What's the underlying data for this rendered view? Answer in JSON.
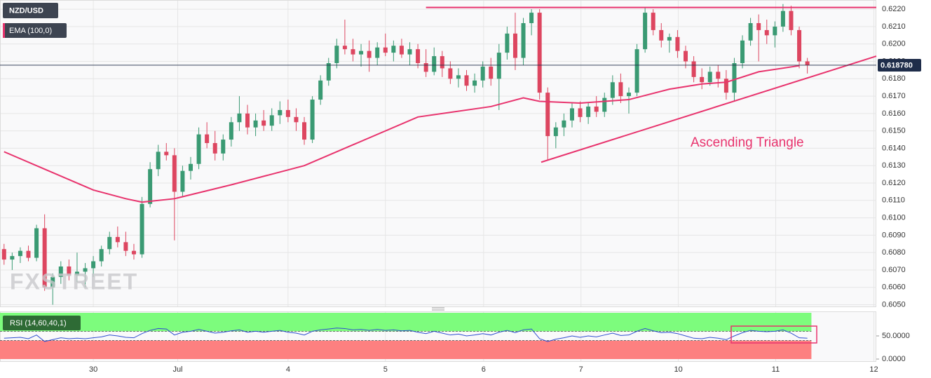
{
  "chart_data": {
    "type": "candlestick",
    "symbol": "NZD/USD",
    "watermark": "FXSTREET",
    "bull_color": "#3a9a73",
    "bear_color": "#dd4660",
    "xlim": [
      -0.5,
      107.5
    ],
    "ylim": [
      0.6049,
      0.62253
    ],
    "xticks": [
      {
        "value": 11,
        "label": "30"
      },
      {
        "value": 21.4,
        "label": "Jul"
      },
      {
        "value": 35,
        "label": "4"
      },
      {
        "value": 47,
        "label": "5"
      },
      {
        "value": 59.1,
        "label": "6"
      },
      {
        "value": 71.1,
        "label": "7"
      },
      {
        "value": 83.1,
        "label": "10"
      },
      {
        "value": 95.1,
        "label": "11"
      },
      {
        "value": 107.2,
        "label": "12"
      }
    ],
    "yticks": [
      {
        "value": 0.605,
        "label": "0.6050"
      },
      {
        "value": 0.606,
        "label": "0.6060"
      },
      {
        "value": 0.607,
        "label": "0.6070"
      },
      {
        "value": 0.608,
        "label": "0.6080"
      },
      {
        "value": 0.609,
        "label": "0.6090"
      },
      {
        "value": 0.61,
        "label": "0.6100"
      },
      {
        "value": 0.611,
        "label": "0.6110"
      },
      {
        "value": 0.612,
        "label": "0.6120"
      },
      {
        "value": 0.613,
        "label": "0.6130"
      },
      {
        "value": 0.614,
        "label": "0.6140"
      },
      {
        "value": 0.615,
        "label": "0.6150"
      },
      {
        "value": 0.616,
        "label": "0.6160"
      },
      {
        "value": 0.617,
        "label": "0.6170"
      },
      {
        "value": 0.618,
        "label": "0.6180"
      },
      {
        "value": 0.619,
        "label": "0.6190"
      },
      {
        "value": 0.62,
        "label": "0.6200"
      },
      {
        "value": 0.621,
        "label": "0.6210"
      },
      {
        "value": 0.622,
        "label": "0.6220"
      }
    ],
    "grid": true,
    "last_price": {
      "value": 0.61878,
      "label": "0.618780"
    },
    "ohlc": [
      [
        0.6082,
        0.6085,
        0.6073,
        0.6076
      ],
      [
        0.6076,
        0.608,
        0.607,
        0.6078
      ],
      [
        0.6078,
        0.6083,
        0.6074,
        0.6081
      ],
      [
        0.6081,
        0.6084,
        0.6075,
        0.6077
      ],
      [
        0.6077,
        0.6096,
        0.6075,
        0.6094
      ],
      [
        0.6094,
        0.6102,
        0.6058,
        0.606
      ],
      [
        0.606,
        0.6068,
        0.605,
        0.6066
      ],
      [
        0.6066,
        0.6075,
        0.6062,
        0.6072
      ],
      [
        0.6072,
        0.6076,
        0.6064,
        0.6067
      ],
      [
        0.6067,
        0.608,
        0.6063,
        0.6069
      ],
      [
        0.6069,
        0.6074,
        0.606,
        0.6071
      ],
      [
        0.6071,
        0.6078,
        0.6066,
        0.6075
      ],
      [
        0.6075,
        0.6084,
        0.6072,
        0.6082
      ],
      [
        0.6082,
        0.6092,
        0.6079,
        0.6089
      ],
      [
        0.6089,
        0.6095,
        0.6083,
        0.6086
      ],
      [
        0.6086,
        0.6092,
        0.6078,
        0.6081
      ],
      [
        0.6081,
        0.6085,
        0.6076,
        0.6079
      ],
      [
        0.6079,
        0.6112,
        0.6077,
        0.6108
      ],
      [
        0.6108,
        0.6132,
        0.6106,
        0.6128
      ],
      [
        0.6128,
        0.6142,
        0.6124,
        0.6138
      ],
      [
        0.6138,
        0.6143,
        0.6133,
        0.6136
      ],
      [
        0.6136,
        0.614,
        0.6087,
        0.6115
      ],
      [
        0.6115,
        0.613,
        0.6112,
        0.6127
      ],
      [
        0.6127,
        0.6135,
        0.6122,
        0.6131
      ],
      [
        0.6131,
        0.6152,
        0.6128,
        0.6148
      ],
      [
        0.6148,
        0.6155,
        0.614,
        0.6143
      ],
      [
        0.6143,
        0.615,
        0.6133,
        0.6137
      ],
      [
        0.6137,
        0.6148,
        0.6133,
        0.6145
      ],
      [
        0.6145,
        0.6158,
        0.6141,
        0.6155
      ],
      [
        0.6155,
        0.617,
        0.615,
        0.616
      ],
      [
        0.616,
        0.6165,
        0.6148,
        0.6152
      ],
      [
        0.6152,
        0.616,
        0.6147,
        0.6156
      ],
      [
        0.6156,
        0.6162,
        0.615,
        0.6153
      ],
      [
        0.6153,
        0.6163,
        0.615,
        0.6159
      ],
      [
        0.6159,
        0.6167,
        0.6154,
        0.6162
      ],
      [
        0.6162,
        0.6168,
        0.6155,
        0.6158
      ],
      [
        0.6158,
        0.6163,
        0.615,
        0.6155
      ],
      [
        0.6155,
        0.6158,
        0.6142,
        0.6145
      ],
      [
        0.6145,
        0.617,
        0.6143,
        0.6168
      ],
      [
        0.6168,
        0.6182,
        0.6165,
        0.6179
      ],
      [
        0.6179,
        0.6192,
        0.6176,
        0.6189
      ],
      [
        0.6189,
        0.6203,
        0.6186,
        0.6199
      ],
      [
        0.6199,
        0.6214,
        0.6194,
        0.6197
      ],
      [
        0.6197,
        0.6203,
        0.619,
        0.6194
      ],
      [
        0.6194,
        0.62,
        0.6187,
        0.6196
      ],
      [
        0.6196,
        0.6202,
        0.6184,
        0.6192
      ],
      [
        0.6192,
        0.6201,
        0.6188,
        0.6198
      ],
      [
        0.6198,
        0.6206,
        0.6193,
        0.6195
      ],
      [
        0.6195,
        0.6202,
        0.619,
        0.6199
      ],
      [
        0.6199,
        0.6203,
        0.6192,
        0.6194
      ],
      [
        0.6194,
        0.6201,
        0.6188,
        0.6197
      ],
      [
        0.6197,
        0.62,
        0.6186,
        0.6189
      ],
      [
        0.6189,
        0.6197,
        0.6181,
        0.6184
      ],
      [
        0.6184,
        0.6198,
        0.6182,
        0.6193
      ],
      [
        0.6193,
        0.6196,
        0.6181,
        0.6186
      ],
      [
        0.6186,
        0.619,
        0.6177,
        0.618
      ],
      [
        0.618,
        0.6186,
        0.6175,
        0.6182
      ],
      [
        0.6182,
        0.6185,
        0.6173,
        0.6176
      ],
      [
        0.6176,
        0.6183,
        0.6172,
        0.6179
      ],
      [
        0.6179,
        0.619,
        0.6175,
        0.6187
      ],
      [
        0.6187,
        0.6192,
        0.6176,
        0.618
      ],
      [
        0.618,
        0.62,
        0.6162,
        0.6195
      ],
      [
        0.6195,
        0.621,
        0.6191,
        0.6206
      ],
      [
        0.6206,
        0.6218,
        0.6185,
        0.6192
      ],
      [
        0.6192,
        0.6215,
        0.6188,
        0.6212
      ],
      [
        0.6212,
        0.622,
        0.6205,
        0.6218
      ],
      [
        0.6218,
        0.622,
        0.6168,
        0.6172
      ],
      [
        0.6172,
        0.6175,
        0.6133,
        0.6147
      ],
      [
        0.6147,
        0.6155,
        0.614,
        0.6152
      ],
      [
        0.6152,
        0.616,
        0.6147,
        0.6156
      ],
      [
        0.6156,
        0.6166,
        0.6152,
        0.6163
      ],
      [
        0.6163,
        0.6167,
        0.6155,
        0.6158
      ],
      [
        0.6158,
        0.6166,
        0.6154,
        0.6164
      ],
      [
        0.6164,
        0.617,
        0.6158,
        0.6161
      ],
      [
        0.6161,
        0.6172,
        0.6158,
        0.6169
      ],
      [
        0.6169,
        0.6182,
        0.6165,
        0.6178
      ],
      [
        0.6178,
        0.6183,
        0.6166,
        0.617
      ],
      [
        0.617,
        0.6175,
        0.616,
        0.6172
      ],
      [
        0.6172,
        0.62,
        0.617,
        0.6197
      ],
      [
        0.6197,
        0.6221,
        0.6195,
        0.6218
      ],
      [
        0.6218,
        0.622,
        0.6205,
        0.6208
      ],
      [
        0.6208,
        0.6212,
        0.6198,
        0.6202
      ],
      [
        0.6202,
        0.6206,
        0.6195,
        0.6204
      ],
      [
        0.6204,
        0.6208,
        0.6192,
        0.6196
      ],
      [
        0.6196,
        0.6199,
        0.6186,
        0.619
      ],
      [
        0.619,
        0.6193,
        0.6178,
        0.6181
      ],
      [
        0.6181,
        0.6186,
        0.6174,
        0.6178
      ],
      [
        0.6178,
        0.6187,
        0.6176,
        0.6184
      ],
      [
        0.6184,
        0.6188,
        0.6175,
        0.618
      ],
      [
        0.618,
        0.6185,
        0.6168,
        0.6172
      ],
      [
        0.6172,
        0.6192,
        0.6167,
        0.6189
      ],
      [
        0.6189,
        0.6205,
        0.6186,
        0.6202
      ],
      [
        0.6202,
        0.6215,
        0.6199,
        0.6212
      ],
      [
        0.6212,
        0.6217,
        0.619,
        0.6208
      ],
      [
        0.6208,
        0.6214,
        0.62,
        0.6205
      ],
      [
        0.6205,
        0.6213,
        0.6198,
        0.621
      ],
      [
        0.621,
        0.6223,
        0.6207,
        0.6219
      ],
      [
        0.6219,
        0.6222,
        0.6205,
        0.6208
      ],
      [
        0.6208,
        0.621,
        0.6186,
        0.619
      ],
      [
        0.619,
        0.6192,
        0.6183,
        0.61878
      ]
    ],
    "series": [
      {
        "name": "EMA (100,0)",
        "color": "#e8336d",
        "x": [
          0,
          5,
          11,
          15,
          17,
          21,
          28,
          37,
          43,
          51,
          60,
          64,
          66,
          71,
          77,
          82,
          86,
          89,
          93,
          98
        ],
        "values": [
          0.6138,
          0.6128,
          0.6116,
          0.6111,
          0.6109,
          0.6111,
          0.6119,
          0.613,
          0.6142,
          0.6158,
          0.6164,
          0.6169,
          0.6167,
          0.6166,
          0.6168,
          0.6174,
          0.6177,
          0.6178,
          0.6184,
          0.61875
        ]
      }
    ],
    "lines": [
      {
        "color": "#e8336d",
        "x": [
          52,
          107.5
        ],
        "y": [
          0.6221,
          0.6221
        ]
      },
      {
        "color": "#e8336d",
        "x": [
          66.2,
          107.5
        ],
        "y": [
          0.6132,
          0.6193
        ]
      }
    ],
    "annotation": "Ascending Triangle",
    "indicator": {
      "name": "RSI (14,60,40,1)",
      "color": "#2f4fd0",
      "ylim": [
        0,
        100
      ],
      "yticks": [
        {
          "value": 50,
          "label": "50.0000"
        },
        {
          "value": 0,
          "label": "0.0000"
        }
      ],
      "levels": [
        60,
        40
      ],
      "level_colors": [
        "#7dfc7d",
        "#fd8080"
      ],
      "values": [
        45,
        46,
        47,
        44,
        52,
        38,
        42,
        46,
        44,
        45,
        44,
        46,
        48,
        52,
        50,
        47,
        46,
        55,
        62,
        66,
        65,
        52,
        58,
        60,
        64,
        60,
        56,
        58,
        61,
        63,
        58,
        60,
        58,
        60,
        62,
        58,
        56,
        52,
        60,
        63,
        65,
        67,
        66,
        63,
        64,
        62,
        64,
        62,
        63,
        61,
        62,
        58,
        55,
        60,
        56,
        52,
        54,
        50,
        52,
        55,
        52,
        58,
        62,
        57,
        63,
        65,
        44,
        38,
        43,
        46,
        50,
        47,
        50,
        48,
        52,
        56,
        51,
        52,
        60,
        66,
        61,
        57,
        58,
        55,
        50,
        45,
        44,
        47,
        45,
        42,
        50,
        57,
        62,
        60,
        59,
        60,
        63,
        56,
        46,
        45
      ]
    }
  }
}
